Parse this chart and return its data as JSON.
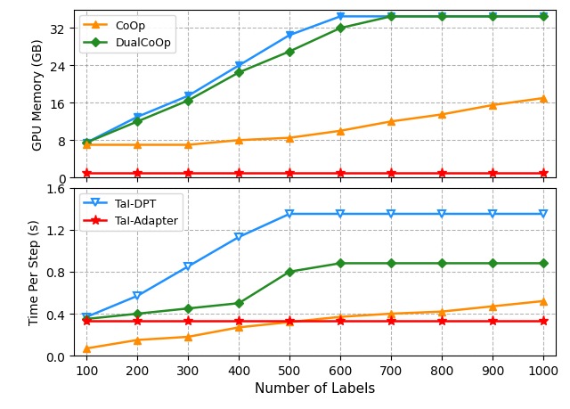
{
  "x": [
    100,
    200,
    300,
    400,
    500,
    600,
    700,
    800,
    900,
    1000
  ],
  "top": {
    "coop_mem": [
      7.0,
      7.0,
      7.0,
      8.0,
      8.5,
      10.0,
      12.0,
      13.5,
      15.5,
      17.0
    ],
    "dualcoop_mem": [
      7.5,
      12.0,
      16.5,
      22.5,
      27.0,
      32.0,
      34.5,
      34.5,
      34.5,
      34.5
    ],
    "taldpt_mem": [
      7.5,
      13.0,
      17.5,
      24.0,
      30.5,
      34.5,
      34.5,
      34.5,
      34.5,
      34.5
    ],
    "taladapter_mem": [
      1.0,
      1.0,
      1.0,
      1.0,
      1.0,
      1.0,
      1.0,
      1.0,
      1.0,
      1.0
    ],
    "ylabel": "GPU Memory (GB)",
    "ylim": [
      0,
      36
    ],
    "yticks": [
      0,
      8,
      16,
      24,
      32
    ]
  },
  "bottom": {
    "coop_time": [
      0.07,
      0.15,
      0.18,
      0.27,
      0.32,
      0.37,
      0.4,
      0.42,
      0.47,
      0.52
    ],
    "dualcoop_time": [
      0.35,
      0.4,
      0.45,
      0.5,
      0.8,
      0.88,
      0.88,
      0.88,
      0.88,
      0.88
    ],
    "taldpt_time": [
      0.37,
      0.57,
      0.85,
      1.13,
      1.35,
      1.35,
      1.35,
      1.35,
      1.35,
      1.35
    ],
    "taladapter_time": [
      0.33,
      0.33,
      0.33,
      0.33,
      0.33,
      0.33,
      0.33,
      0.33,
      0.33,
      0.33
    ],
    "ylabel": "Time Per Step (s)",
    "ylim": [
      0.0,
      1.6
    ],
    "yticks": [
      0.0,
      0.4,
      0.8,
      1.2,
      1.6
    ]
  },
  "xlabel": "Number of Labels",
  "colors": {
    "CoOp": "#FF8C00",
    "DualCoOp": "#228B22",
    "TalDPT": "#1E90FF",
    "TalAdapter": "#FF0000"
  },
  "legend_labels": {
    "CoOp": "CoOp",
    "DualCoOp": "DualCoOp",
    "TalDPT": "TaI-DPT",
    "TalAdapter": "TaI-Adapter"
  }
}
